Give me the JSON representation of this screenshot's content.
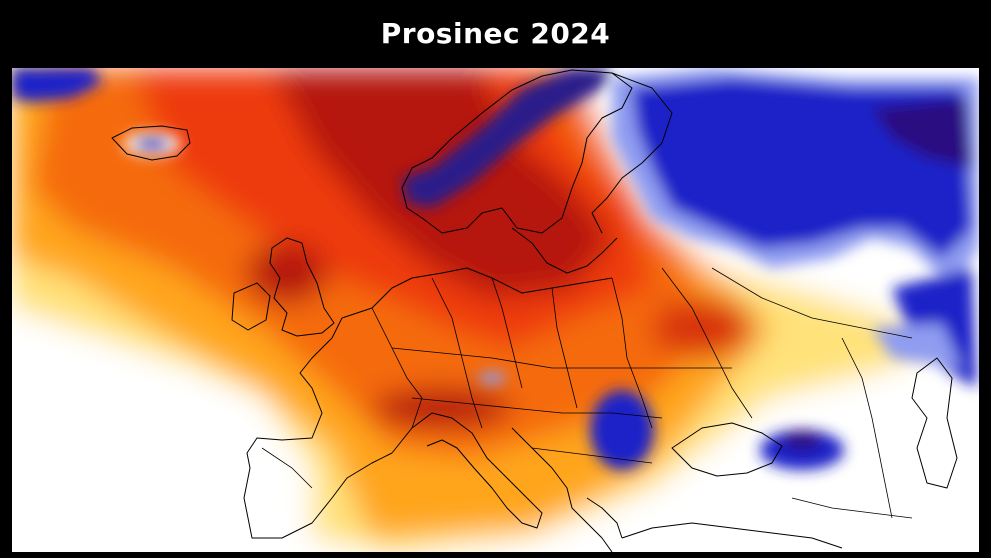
{
  "title": "Prosinec 2024",
  "map": {
    "subject": "temperature-anomaly-europe",
    "colors": {
      "background": "#000000",
      "title_text": "#ffffff",
      "cold_deep": "#1a0f4a",
      "cold": "#1f22c8",
      "cold_light": "#8f9cf0",
      "neutral": "#ffffff",
      "warm_light": "#ffe27a",
      "warm": "#ffa51e",
      "hot": "#ee3a08",
      "hot_deep": "#8a0a05",
      "border_lines": "#000000"
    }
  }
}
